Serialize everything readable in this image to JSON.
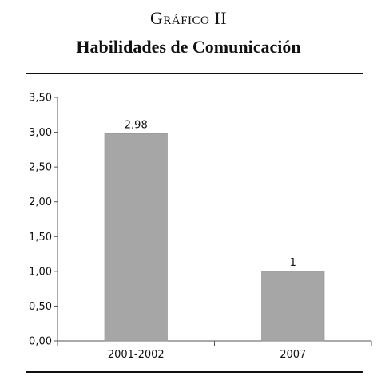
{
  "header": {
    "kicker": "Gráfico II",
    "title": "Habilidades de Comunicación"
  },
  "chart_data": {
    "type": "bar",
    "categories": [
      "2001-2002",
      "2007"
    ],
    "values": [
      2.98,
      1
    ],
    "value_labels": [
      "2,98",
      "1"
    ],
    "ylim": [
      0,
      3.5
    ],
    "yticks": [
      0,
      0.5,
      1,
      1.5,
      2,
      2.5,
      3,
      3.5
    ],
    "ytick_labels": [
      "0,00",
      "0,50",
      "1,00",
      "1,50",
      "2,00",
      "2,50",
      "3,00",
      "3,50"
    ],
    "grid": false,
    "legend": "none",
    "bar_color": "#a6a6a6"
  }
}
